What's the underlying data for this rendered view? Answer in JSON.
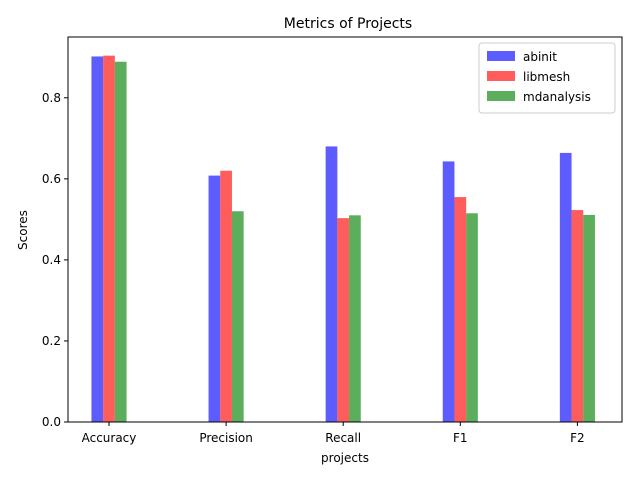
{
  "chart_data": {
    "type": "bar",
    "title": "Metrics of Projects",
    "xlabel": "projects",
    "ylabel": "Scores",
    "categories": [
      "Accuracy",
      "Precision",
      "Recall",
      "F1",
      "F2"
    ],
    "ylim": [
      0,
      0.95
    ],
    "yticks": [
      0.0,
      0.2,
      0.4,
      0.6,
      0.8
    ],
    "ytick_labels": [
      "0.0",
      "0.2",
      "0.4",
      "0.6",
      "0.8"
    ],
    "grid": false,
    "legend_position": "top-right",
    "series": [
      {
        "name": "abinit",
        "color": "#3333ff",
        "values": [
          0.902,
          0.608,
          0.68,
          0.643,
          0.664
        ]
      },
      {
        "name": "libmesh",
        "color": "#ff3333",
        "values": [
          0.904,
          0.62,
          0.503,
          0.555,
          0.523
        ]
      },
      {
        "name": "mdanalysis",
        "color": "#339933",
        "values": [
          0.889,
          0.52,
          0.51,
          0.515,
          0.511
        ]
      }
    ]
  }
}
